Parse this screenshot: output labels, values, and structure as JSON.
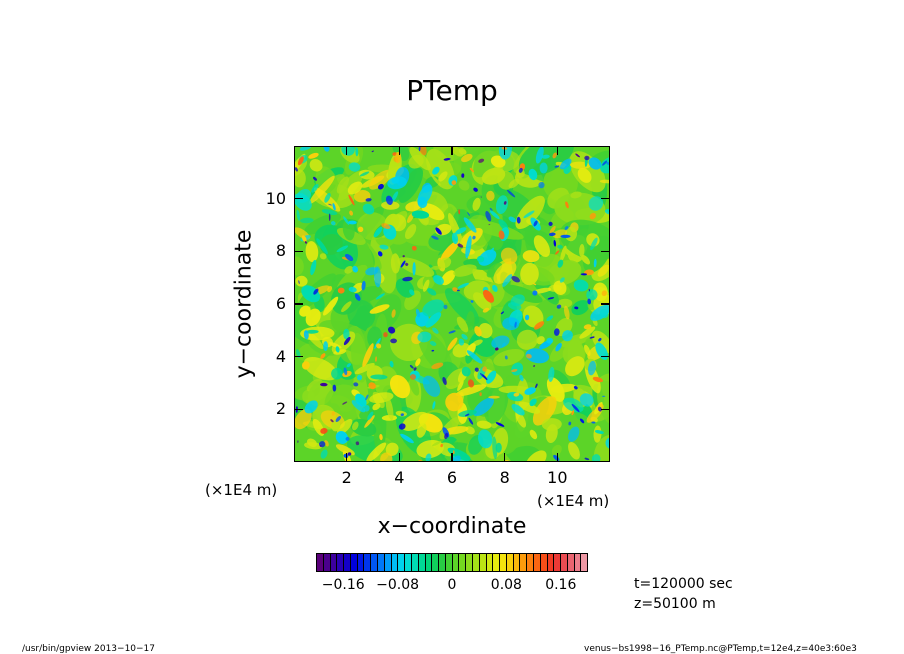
{
  "chart_data": {
    "type": "heatmap",
    "title": "PTemp",
    "xlabel": "x−coordinate",
    "ylabel": "y−coordinate",
    "x_unit_label": "(×1E4 m)",
    "y_unit_label": "(×1E4 m)",
    "xlim": [
      0,
      12
    ],
    "ylim": [
      0,
      12
    ],
    "x_ticks": [
      "2",
      "4",
      "6",
      "8",
      "10"
    ],
    "y_ticks": [
      "2",
      "4",
      "6",
      "8",
      "10"
    ],
    "x_tick_values": [
      2,
      4,
      6,
      8,
      10
    ],
    "y_tick_values": [
      2,
      4,
      6,
      8,
      10
    ],
    "colorbar": {
      "min": -0.2,
      "max": 0.2,
      "levels": 40,
      "tick_labels": [
        "−0.16",
        "−0.08",
        "0",
        "0.08",
        "0.16"
      ],
      "tick_values": [
        -0.16,
        -0.08,
        0,
        0.08,
        0.16
      ],
      "colors": [
        "#5a007a",
        "#4b008c",
        "#3c009e",
        "#2800b4",
        "#1400c8",
        "#0000dc",
        "#0018e6",
        "#0036ee",
        "#0056f4",
        "#0078f8",
        "#009cfa",
        "#00bcf6",
        "#00d2ec",
        "#00dcd2",
        "#00dcb4",
        "#00d896",
        "#00d478",
        "#10d05c",
        "#28cc44",
        "#42d032",
        "#5cd428",
        "#74d820",
        "#8cdc1c",
        "#a4e018",
        "#bce414",
        "#d2e812",
        "#e6ec10",
        "#f4e40e",
        "#f8d00c",
        "#fab80c",
        "#fc9c0c",
        "#fc800e",
        "#fa6612",
        "#f64e18",
        "#f03c24",
        "#ec3a36",
        "#ea4c52",
        "#ea6470",
        "#ec7e8c",
        "#ee98a4"
      ]
    }
  },
  "annotations": {
    "time": "t=120000 sec",
    "height": "z=50100 m"
  },
  "footer": {
    "left": "/usr/bin/gpview   2013−10−17",
    "right": "venus−bs1998−16_PTemp.nc@PTemp,t=12e4,z=40e3:60e3"
  }
}
